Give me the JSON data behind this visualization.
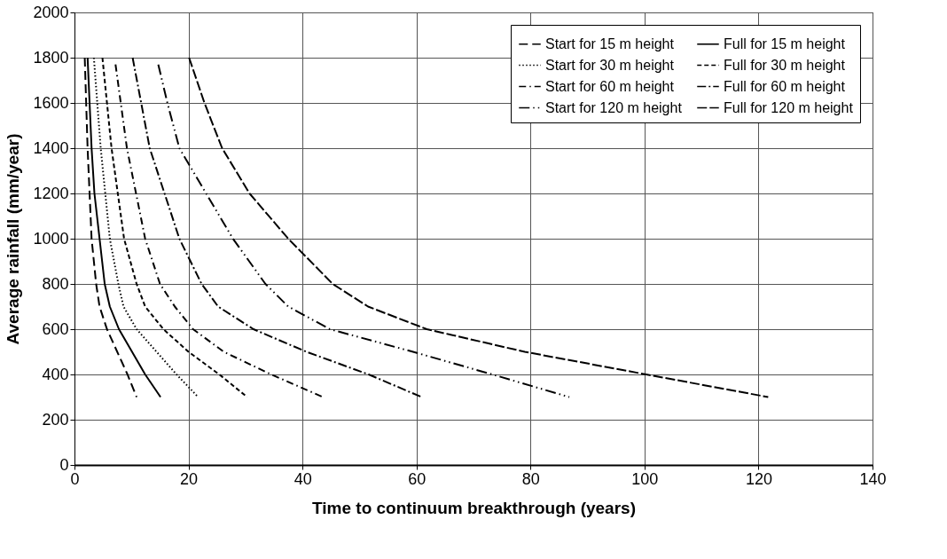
{
  "chart_data": {
    "type": "line",
    "xlabel": "Time to continuum breakthrough (years)",
    "ylabel": "Average rainfall (mm/year)",
    "xlim": [
      0,
      140
    ],
    "xticks": [
      0,
      20,
      40,
      60,
      80,
      100,
      120,
      140
    ],
    "ylim": [
      0,
      2000
    ],
    "yticks": [
      0,
      200,
      400,
      600,
      800,
      1000,
      1200,
      1400,
      1600,
      1800,
      2000
    ],
    "grid": true,
    "legend": "top right",
    "marker": "none",
    "series": [
      {
        "name": "Start for 15 m height",
        "color": "#000000",
        "line_style": "dashed",
        "x": [
          1.8,
          2.3,
          3.0,
          3.8,
          4.4,
          5.7,
          9.3,
          10.9
        ],
        "values": [
          1800,
          1400,
          1000,
          800,
          700,
          600,
          400,
          300
        ]
      },
      {
        "name": "Full for 15 m height",
        "color": "#000000",
        "line_style": "solid",
        "x": [
          2.3,
          3.0,
          3.5,
          4.4,
          5.3,
          6.2,
          7.8,
          12.4,
          15.1
        ],
        "values": [
          1800,
          1400,
          1200,
          1000,
          800,
          700,
          600,
          400,
          300
        ]
      },
      {
        "name": "Start for 30 m height",
        "color": "#000000",
        "line_style": "dotted",
        "x": [
          3.4,
          4.6,
          6.2,
          7.7,
          8.6,
          10.9,
          17.9,
          21.7
        ],
        "values": [
          1800,
          1400,
          1000,
          800,
          700,
          600,
          400,
          300
        ]
      },
      {
        "name": "Full for 30 m height",
        "color": "#000000",
        "line_style": "shortdashed",
        "x": [
          4.9,
          6.5,
          8.7,
          10.9,
          12.4,
          15.6,
          20.0,
          25.4,
          30.3
        ],
        "values": [
          1800,
          1400,
          1000,
          800,
          700,
          600,
          500,
          400,
          300
        ]
      },
      {
        "name": "Start for 60 m height",
        "color": "#000000",
        "line_style": "dashdot",
        "x": [
          7.2,
          9.2,
          12.4,
          15.0,
          17.6,
          20.8,
          26.2,
          34.5,
          43.6
        ],
        "values": [
          1770,
          1400,
          1000,
          800,
          700,
          600,
          500,
          400,
          300
        ]
      },
      {
        "name": "Full for 60 m height",
        "color": "#000000",
        "line_style": "longdashdot",
        "x": [
          10.2,
          13.2,
          18.4,
          22.3,
          25.2,
          31.4,
          40.7,
          51.6,
          60.9
        ],
        "values": [
          1800,
          1400,
          1000,
          800,
          700,
          600,
          500,
          400,
          300
        ]
      },
      {
        "name": "Start for 120 m height",
        "color": "#000000",
        "line_style": "dashdotdot",
        "x": [
          14.7,
          16.3,
          18.4,
          23.1,
          27.8,
          33.5,
          37.5,
          44.8,
          59.4,
          73.3,
          86.8
        ],
        "values": [
          1770,
          1600,
          1400,
          1200,
          1000,
          800,
          700,
          600,
          500,
          400,
          300
        ]
      },
      {
        "name": "Full for 120 m height",
        "color": "#000000",
        "line_style": "longdashed",
        "x": [
          20.1,
          22.8,
          25.9,
          30.7,
          37.5,
          45.3,
          51.5,
          61.8,
          79.0,
          100.3,
          121.7
        ],
        "values": [
          1800,
          1600,
          1400,
          1200,
          1000,
          800,
          700,
          600,
          500,
          400,
          300
        ]
      }
    ]
  }
}
